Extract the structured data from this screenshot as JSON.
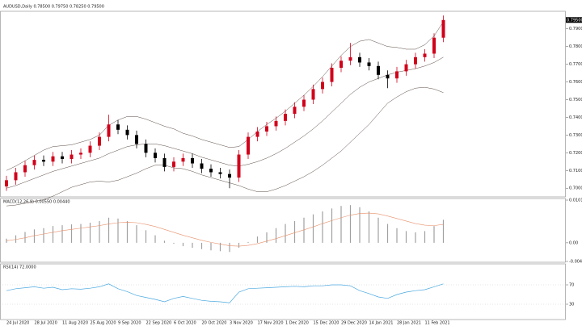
{
  "chart_data": [
    {
      "type": "candlestick",
      "title": "AUDUSD,Daily  0.78500 0.79750 0.78250 0.79500",
      "categories": [
        "24 Jul 2020",
        null,
        null,
        "28 Jul 2020",
        null,
        null,
        "11 Aug 2020",
        null,
        null,
        "25 Aug 2020",
        null,
        null,
        "9 Sep 2020",
        null,
        null,
        "22 Sep 2020",
        null,
        null,
        "6 Oct 2020",
        null,
        null,
        "20 Oct 2020",
        null,
        null,
        "3 Nov 2020",
        null,
        null,
        "17 Nov 2020",
        null,
        null,
        "1 Dec 2020",
        null,
        null,
        "15 Dec 2020",
        null,
        null,
        "29 Dec 2020",
        null,
        null,
        "14 Jan 2021",
        null,
        null,
        "28 Jan 2021",
        null,
        null,
        "11 Feb 2021",
        null,
        null
      ],
      "open": [
        0.701,
        0.7045,
        0.709,
        0.713,
        0.716,
        0.715,
        0.718,
        0.7165,
        0.719,
        0.72,
        0.724,
        0.729,
        0.736,
        0.733,
        0.73,
        0.725,
        0.72,
        0.717,
        0.712,
        0.715,
        0.717,
        0.714,
        0.711,
        0.709,
        0.708,
        0.706,
        0.719,
        0.729,
        0.732,
        0.735,
        0.738,
        0.742,
        0.746,
        0.75,
        0.756,
        0.76,
        0.768,
        0.772,
        0.774,
        0.771,
        0.769,
        0.764,
        0.762,
        0.766,
        0.77,
        0.774,
        0.776,
        0.785
      ],
      "high": [
        0.707,
        0.7115,
        0.7155,
        0.7185,
        0.7185,
        0.7205,
        0.7205,
        0.7215,
        0.7225,
        0.7265,
        0.7315,
        0.7415,
        0.7385,
        0.7355,
        0.7325,
        0.7275,
        0.7225,
        0.7195,
        0.7175,
        0.7195,
        0.7195,
        0.7165,
        0.7135,
        0.7115,
        0.7105,
        0.7215,
        0.7315,
        0.7345,
        0.7375,
        0.7405,
        0.7445,
        0.7485,
        0.7525,
        0.7585,
        0.7625,
        0.7705,
        0.7745,
        0.782,
        0.7765,
        0.7735,
        0.7715,
        0.7665,
        0.7685,
        0.7725,
        0.7765,
        0.7785,
        0.7875,
        0.7975
      ],
      "low": [
        0.6985,
        0.702,
        0.7065,
        0.7105,
        0.7125,
        0.7125,
        0.714,
        0.714,
        0.7165,
        0.7175,
        0.7215,
        0.7265,
        0.7305,
        0.7275,
        0.7225,
        0.7175,
        0.7145,
        0.7095,
        0.7095,
        0.7125,
        0.7115,
        0.7085,
        0.7065,
        0.7055,
        0.7,
        0.7035,
        0.7165,
        0.7265,
        0.7295,
        0.7325,
        0.7355,
        0.7395,
        0.7435,
        0.7475,
        0.7535,
        0.7575,
        0.7655,
        0.7695,
        0.7685,
        0.7665,
        0.7615,
        0.7565,
        0.7595,
        0.7635,
        0.7675,
        0.7715,
        0.7735,
        0.7825
      ],
      "close": [
        0.7045,
        0.709,
        0.713,
        0.716,
        0.715,
        0.718,
        0.7165,
        0.719,
        0.72,
        0.724,
        0.729,
        0.736,
        0.733,
        0.73,
        0.725,
        0.72,
        0.717,
        0.712,
        0.715,
        0.717,
        0.714,
        0.711,
        0.709,
        0.708,
        0.706,
        0.719,
        0.729,
        0.732,
        0.735,
        0.738,
        0.742,
        0.746,
        0.75,
        0.756,
        0.76,
        0.768,
        0.772,
        0.774,
        0.771,
        0.769,
        0.764,
        0.762,
        0.766,
        0.77,
        0.774,
        0.776,
        0.785,
        0.795
      ],
      "bands": {
        "color": "#5a4a44",
        "upper": [
          0.71,
          0.7125,
          0.7155,
          0.7185,
          0.7215,
          0.7235,
          0.724,
          0.7245,
          0.726,
          0.7275,
          0.73,
          0.7355,
          0.7385,
          0.7405,
          0.7405,
          0.739,
          0.737,
          0.735,
          0.7335,
          0.731,
          0.7295,
          0.7275,
          0.726,
          0.7245,
          0.723,
          0.7235,
          0.7275,
          0.732,
          0.736,
          0.7395,
          0.7435,
          0.748,
          0.7525,
          0.7575,
          0.763,
          0.769,
          0.775,
          0.78,
          0.783,
          0.784,
          0.782,
          0.78,
          0.7795,
          0.7785,
          0.7785,
          0.781,
          0.786,
          0.794
        ],
        "middle": [
          0.7,
          0.7015,
          0.7035,
          0.7055,
          0.7075,
          0.7095,
          0.711,
          0.7125,
          0.714,
          0.7155,
          0.717,
          0.7195,
          0.7215,
          0.7235,
          0.7245,
          0.725,
          0.725,
          0.724,
          0.7225,
          0.721,
          0.7195,
          0.7175,
          0.716,
          0.7145,
          0.713,
          0.7125,
          0.7135,
          0.715,
          0.717,
          0.7195,
          0.7225,
          0.726,
          0.7295,
          0.7335,
          0.738,
          0.743,
          0.748,
          0.753,
          0.757,
          0.76,
          0.762,
          0.764,
          0.7655,
          0.7665,
          0.7675,
          0.769,
          0.771,
          0.774
        ],
        "lower": [
          0.69,
          0.6905,
          0.6915,
          0.6925,
          0.6935,
          0.6955,
          0.698,
          0.7005,
          0.702,
          0.7035,
          0.704,
          0.7035,
          0.7045,
          0.7065,
          0.7085,
          0.711,
          0.713,
          0.713,
          0.7115,
          0.711,
          0.7095,
          0.7075,
          0.706,
          0.7045,
          0.703,
          0.7015,
          0.6995,
          0.698,
          0.698,
          0.6995,
          0.7015,
          0.704,
          0.7065,
          0.7095,
          0.713,
          0.717,
          0.721,
          0.726,
          0.731,
          0.736,
          0.742,
          0.748,
          0.7515,
          0.7545,
          0.7565,
          0.757,
          0.756,
          0.754
        ]
      },
      "up_color": "#d0021b",
      "down_color": "#000000",
      "last_price": {
        "value": 0.795,
        "label": "0.79500"
      },
      "ylim": [
        0.696,
        0.799
      ],
      "yticks": [
        {
          "value": 0.7,
          "label": "0.70000"
        },
        {
          "value": 0.71,
          "label": "0.71000"
        },
        {
          "value": 0.72,
          "label": "0.72000"
        },
        {
          "value": 0.73,
          "label": "0.73000"
        },
        {
          "value": 0.74,
          "label": "0.74000"
        },
        {
          "value": 0.75,
          "label": "0.75000"
        },
        {
          "value": 0.76,
          "label": "0.76000"
        },
        {
          "value": 0.77,
          "label": "0.77000"
        },
        {
          "value": 0.78,
          "label": "0.78000"
        },
        {
          "value": 0.79,
          "label": "0.79000"
        }
      ]
    },
    {
      "type": "bar",
      "title": "MACD(12,26,9) 0.00550 0.00440",
      "values": [
        0.001,
        0.0018,
        0.0026,
        0.0032,
        0.0035,
        0.004,
        0.0042,
        0.0044,
        0.0045,
        0.0048,
        0.0052,
        0.006,
        0.0058,
        0.0052,
        0.0042,
        0.003,
        0.0018,
        0.0005,
        -0.0002,
        -0.0008,
        -0.0012,
        -0.0015,
        -0.0018,
        -0.002,
        -0.0022,
        -0.0012,
        0.0002,
        0.0015,
        0.0025,
        0.0035,
        0.0045,
        0.0052,
        0.006,
        0.0068,
        0.0075,
        0.0082,
        0.0088,
        0.009,
        0.0085,
        0.0075,
        0.006,
        0.0045,
        0.0035,
        0.0028,
        0.0025,
        0.0028,
        0.004,
        0.0055
      ],
      "color": "#a0a0a0",
      "signal": [
        0.0005,
        0.0008,
        0.0012,
        0.0017,
        0.0021,
        0.0025,
        0.0029,
        0.0032,
        0.0035,
        0.0038,
        0.0041,
        0.0045,
        0.0048,
        0.0049,
        0.0048,
        0.0044,
        0.0039,
        0.0032,
        0.0025,
        0.0018,
        0.0012,
        0.0006,
        0.0001,
        -0.0003,
        -0.0007,
        -0.0008,
        -0.0006,
        -0.0002,
        0.0004,
        0.001,
        0.0017,
        0.0024,
        0.0031,
        0.0038,
        0.0046,
        0.0053,
        0.006,
        0.0066,
        0.007,
        0.0071,
        0.0069,
        0.0064,
        0.0058,
        0.0052,
        0.0046,
        0.0042,
        0.0041,
        0.0044
      ],
      "signal_color": "#e8906a",
      "ylim": [
        -0.004448,
        0.010192
      ],
      "yticks": [
        0.010192,
        {
          "value": 0,
          "label": "0.00"
        },
        -0.004448
      ]
    },
    {
      "type": "line",
      "title": "RSI(14) 72.0000",
      "values": [
        58,
        62,
        64,
        66,
        63,
        65,
        60,
        62,
        61,
        63,
        66,
        72,
        62,
        56,
        48,
        44,
        40,
        35,
        42,
        46,
        42,
        38,
        36,
        35,
        33,
        55,
        62,
        63,
        64,
        65,
        66,
        67,
        66,
        68,
        68,
        70,
        70,
        68,
        58,
        52,
        45,
        42,
        50,
        55,
        58,
        60,
        66,
        72
      ],
      "color": "#4aa8e0",
      "ylim": [
        0,
        100
      ],
      "yticks": [
        70,
        30
      ]
    }
  ]
}
